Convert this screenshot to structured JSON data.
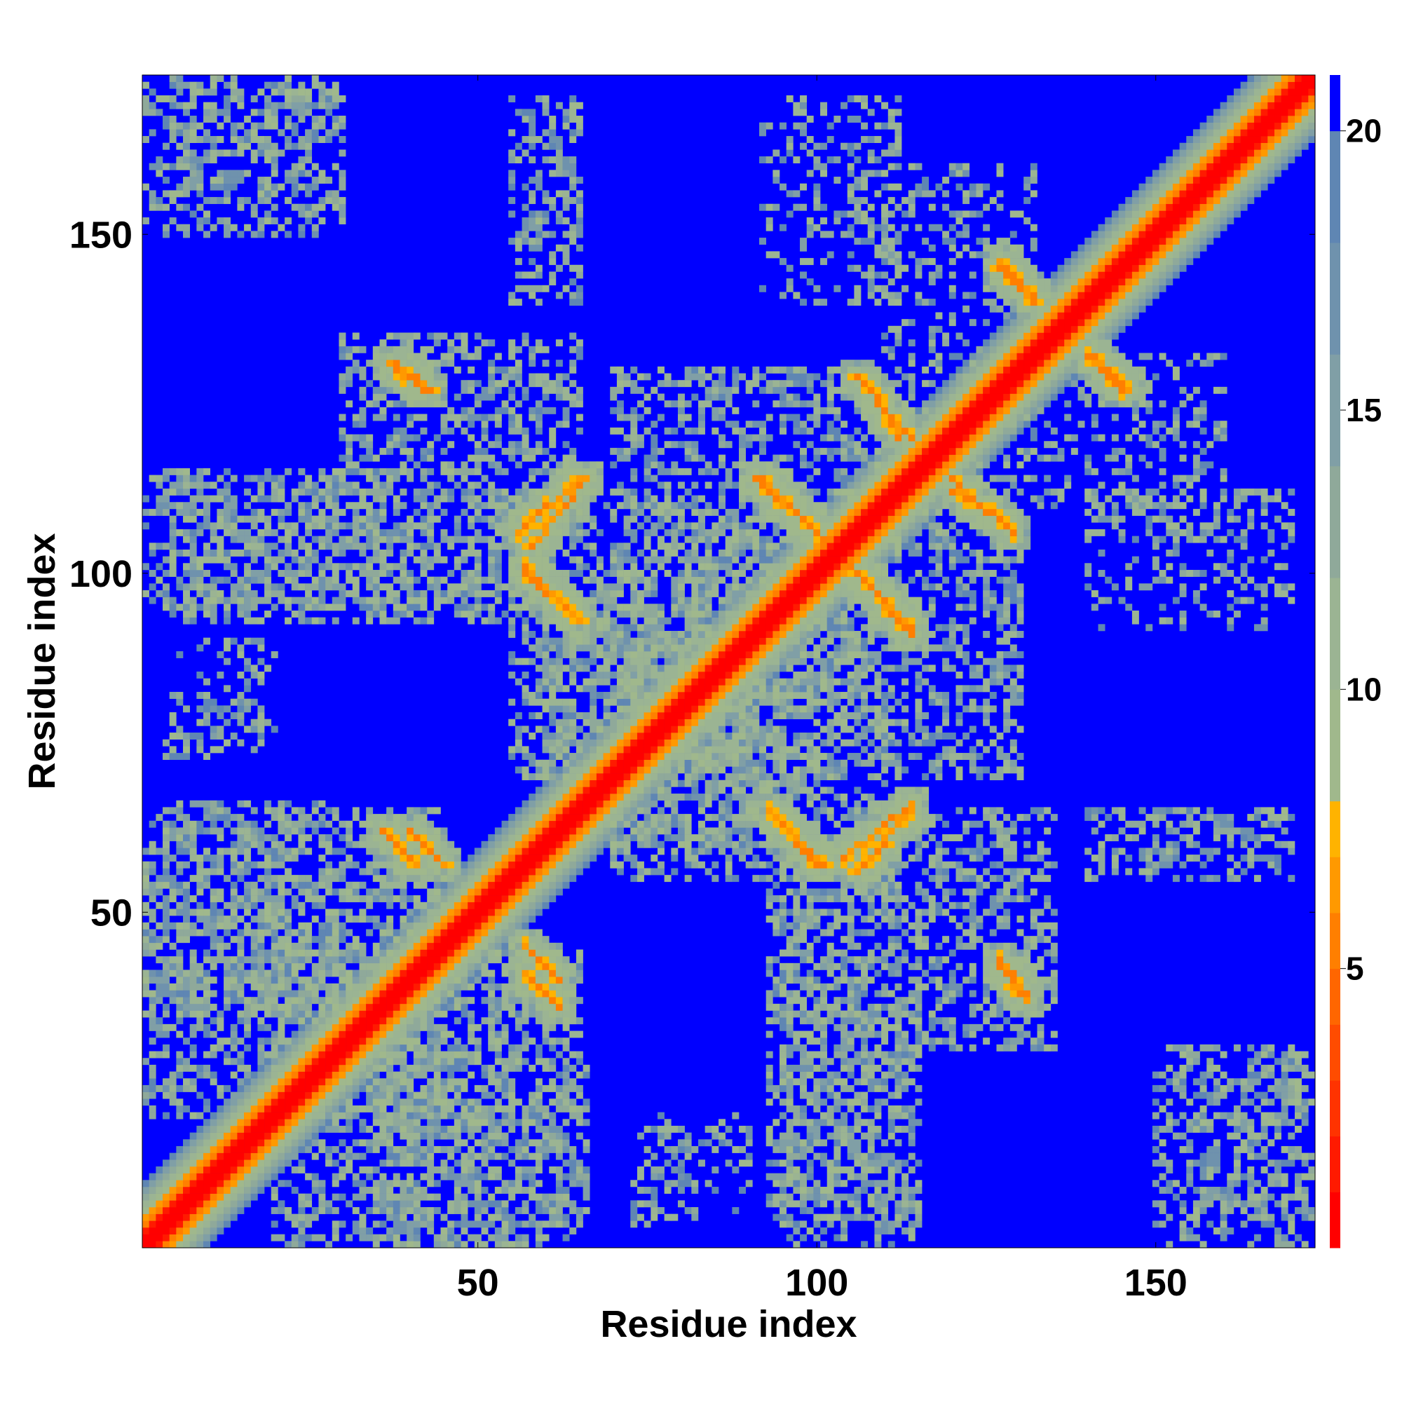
{
  "chart_data": {
    "type": "heatmap",
    "title": "",
    "xlabel": "Residue index",
    "ylabel": "Residue index",
    "n_residues": 173,
    "xlim": [
      0.5,
      173.5
    ],
    "ylim": [
      0.5,
      173.5
    ],
    "x_ticks": [
      50,
      100,
      150
    ],
    "y_ticks": [
      50,
      100,
      150
    ],
    "x_tick_labels": [
      "50",
      "100",
      "150"
    ],
    "y_tick_labels": [
      "50",
      "100",
      "150"
    ],
    "colorbar": {
      "range": [
        0,
        21
      ],
      "ticks": [
        5,
        10,
        15,
        20
      ],
      "tick_labels": [
        "5",
        "10",
        "15",
        "20"
      ],
      "levels": [
        {
          "from": 0,
          "to": 1,
          "color": "#ff0000"
        },
        {
          "from": 1,
          "to": 2,
          "color": "#ff1a00"
        },
        {
          "from": 2,
          "to": 3,
          "color": "#ff3300"
        },
        {
          "from": 3,
          "to": 4,
          "color": "#ff4c00"
        },
        {
          "from": 4,
          "to": 5,
          "color": "#ff6600"
        },
        {
          "from": 5,
          "to": 6,
          "color": "#ff7f00"
        },
        {
          "from": 6,
          "to": 7,
          "color": "#ff9900"
        },
        {
          "from": 7,
          "to": 8,
          "color": "#ffb300"
        },
        {
          "from": 8,
          "to": 10,
          "color": "#a0b88c"
        },
        {
          "from": 10,
          "to": 12,
          "color": "#9bb493"
        },
        {
          "from": 12,
          "to": 14,
          "color": "#8fa99a"
        },
        {
          "from": 14,
          "to": 16,
          "color": "#809fa6"
        },
        {
          "from": 16,
          "to": 18,
          "color": "#6f92ad"
        },
        {
          "from": 18,
          "to": 20,
          "color": "#5f86b3"
        },
        {
          "from": 20,
          "to": 21,
          "color": "#0000ff"
        }
      ]
    },
    "background_color": "#0000ff",
    "diagonal": {
      "core_color": "#ff0000",
      "inner_width": 2,
      "orange_width": 4,
      "halo_width": 9
    },
    "contact_bands": [
      {
        "x1": 36,
        "y1": 62,
        "x2": 41,
        "y2": 57,
        "value": 6
      },
      {
        "x1": 57,
        "y1": 45,
        "x2": 62,
        "y2": 40,
        "value": 6
      },
      {
        "x1": 57,
        "y1": 101,
        "x2": 64,
        "y2": 94,
        "value": 6
      },
      {
        "x1": 56,
        "y1": 106,
        "x2": 65,
        "y2": 114,
        "value": 6
      },
      {
        "x1": 37,
        "y1": 131,
        "x2": 42,
        "y2": 127,
        "value": 6
      },
      {
        "x1": 93,
        "y1": 65,
        "x2": 100,
        "y2": 57,
        "value": 6
      },
      {
        "x1": 104,
        "y1": 58,
        "x2": 114,
        "y2": 66,
        "value": 6
      },
      {
        "x1": 91,
        "y1": 114,
        "x2": 100,
        "y2": 106,
        "value": 6
      },
      {
        "x1": 105,
        "y1": 101,
        "x2": 114,
        "y2": 92,
        "value": 6
      },
      {
        "x1": 107,
        "y1": 128,
        "x2": 110,
        "y2": 124,
        "value": 6
      },
      {
        "x1": 111,
        "y1": 123,
        "x2": 114,
        "y2": 120,
        "value": 6
      },
      {
        "x1": 120,
        "y1": 112,
        "x2": 124,
        "y2": 110,
        "value": 6
      },
      {
        "x1": 126,
        "y1": 109,
        "x2": 129,
        "y2": 106,
        "value": 6
      },
      {
        "x1": 127,
        "y1": 146,
        "x2": 132,
        "y2": 141,
        "value": 6
      },
      {
        "x1": 140,
        "y1": 132,
        "x2": 145,
        "y2": 127,
        "value": 6
      },
      {
        "x1": 127,
        "y1": 43,
        "x2": 131,
        "y2": 38,
        "value": 6
      }
    ],
    "background_clusters": [
      {
        "x": [
          5,
          30
        ],
        "y": [
          155,
          173
        ],
        "density": 0.35
      },
      {
        "x": [
          5,
          60
        ],
        "y": [
          93,
          112
        ],
        "density": 0.4
      },
      {
        "x": [
          4,
          18
        ],
        "y": [
          73,
          82
        ],
        "density": 0.3
      },
      {
        "x": [
          4,
          30
        ],
        "y": [
          58,
          66
        ],
        "density": 0.45
      },
      {
        "x": [
          1,
          45
        ],
        "y": [
          20,
          55
        ],
        "density": 0.45
      },
      {
        "x": [
          35,
          65
        ],
        "y": [
          1,
          45
        ],
        "density": 0.4
      },
      {
        "x": [
          55,
          65
        ],
        "y": [
          140,
          170
        ],
        "density": 0.3
      },
      {
        "x": [
          92,
          112
        ],
        "y": [
          140,
          170
        ],
        "density": 0.25
      },
      {
        "x": [
          95,
          115
        ],
        "y": [
          1,
          60
        ],
        "density": 0.45
      },
      {
        "x": [
          70,
          110
        ],
        "y": [
          60,
          130
        ],
        "density": 0.45
      },
      {
        "x": [
          110,
          132
        ],
        "y": [
          120,
          160
        ],
        "density": 0.3
      },
      {
        "x": [
          140,
          170
        ],
        "y": [
          105,
          112
        ],
        "density": 0.25
      },
      {
        "x": [
          140,
          170
        ],
        "y": [
          58,
          65
        ],
        "density": 0.3
      },
      {
        "x": [
          115,
          135
        ],
        "y": [
          30,
          65
        ],
        "density": 0.4
      },
      {
        "x": [
          150,
          172
        ],
        "y": [
          1,
          30
        ],
        "density": 0.4
      },
      {
        "x": [
          75,
          90
        ],
        "y": [
          5,
          20
        ],
        "density": 0.25
      },
      {
        "x": [
          55,
          75
        ],
        "y": [
          70,
          100
        ],
        "density": 0.45
      },
      {
        "x": [
          75,
          95
        ],
        "y": [
          70,
          95
        ],
        "density": 0.35
      }
    ]
  }
}
